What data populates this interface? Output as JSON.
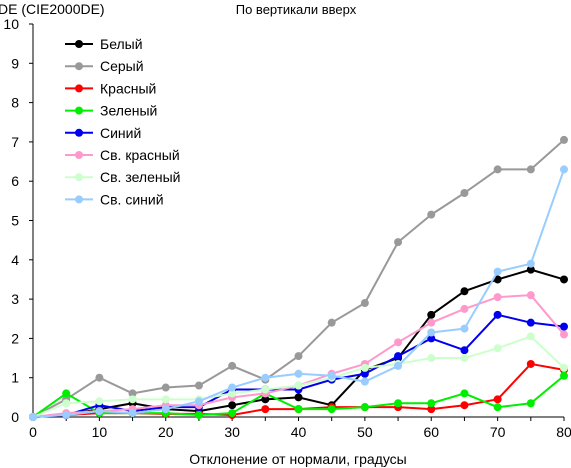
{
  "chart_data": {
    "type": "line",
    "title": "По вертикали вверх",
    "ylabel": "DE (CIE2000DE)",
    "xlabel": "Отклонение от нормали, градусы",
    "xlim": [
      0,
      80
    ],
    "ylim": [
      0,
      10
    ],
    "x_ticks": [
      "0",
      "10",
      "20",
      "30",
      "40",
      "50",
      "60",
      "70",
      "80"
    ],
    "y_ticks": [
      "0",
      "1",
      "2",
      "3",
      "4",
      "5",
      "6",
      "7",
      "8",
      "9",
      "10"
    ],
    "grid": false,
    "legend_position": "top-left",
    "x": [
      0,
      5,
      10,
      15,
      20,
      25,
      30,
      35,
      40,
      45,
      50,
      55,
      60,
      65,
      70,
      75,
      80
    ],
    "series": [
      {
        "name": "Белый",
        "color": "#000000",
        "values": [
          0,
          0.05,
          0.2,
          0.35,
          0.2,
          0.15,
          0.3,
          0.45,
          0.5,
          0.3,
          1.2,
          1.5,
          2.6,
          3.2,
          3.5,
          3.75,
          3.5
        ]
      },
      {
        "name": "Серый",
        "color": "#999999",
        "values": [
          0,
          0.45,
          1.0,
          0.6,
          0.75,
          0.8,
          1.3,
          0.95,
          1.55,
          2.4,
          2.9,
          4.45,
          5.15,
          5.7,
          6.3,
          6.3,
          7.05
        ]
      },
      {
        "name": "Красный",
        "color": "#ff0000",
        "values": [
          0,
          0.05,
          0.1,
          0.1,
          0.08,
          0.08,
          0.05,
          0.2,
          0.2,
          0.25,
          0.25,
          0.25,
          0.2,
          0.3,
          0.45,
          1.35,
          1.2
        ]
      },
      {
        "name": "Зеленый",
        "color": "#00ee00",
        "values": [
          0,
          0.6,
          0.1,
          0.1,
          0.1,
          0.05,
          0.1,
          0.6,
          0.2,
          0.2,
          0.25,
          0.35,
          0.35,
          0.6,
          0.25,
          0.35,
          1.05
        ]
      },
      {
        "name": "Синий",
        "color": "#0000ee",
        "values": [
          0,
          0.05,
          0.3,
          0.15,
          0.25,
          0.25,
          0.7,
          0.7,
          0.7,
          0.95,
          1.1,
          1.55,
          2.0,
          1.7,
          2.6,
          2.4,
          2.3
        ]
      },
      {
        "name": "Св. красный",
        "color": "#ff99cc",
        "values": [
          0,
          0.1,
          0.15,
          0.2,
          0.3,
          0.3,
          0.5,
          0.6,
          0.8,
          1.1,
          1.35,
          1.9,
          2.4,
          2.75,
          3.05,
          3.1,
          2.1
        ]
      },
      {
        "name": "Св. зеленый",
        "color": "#ccffcc",
        "values": [
          0,
          0.35,
          0.4,
          0.45,
          0.45,
          0.45,
          0.6,
          0.7,
          0.8,
          1.0,
          1.25,
          1.35,
          1.5,
          1.5,
          1.75,
          2.05,
          1.25
        ]
      },
      {
        "name": "Св. синий",
        "color": "#99ccff",
        "values": [
          0,
          0.05,
          0.15,
          0.1,
          0.2,
          0.4,
          0.75,
          1.0,
          1.1,
          1.05,
          0.9,
          1.3,
          2.15,
          2.25,
          3.7,
          3.9,
          6.3
        ]
      }
    ]
  }
}
